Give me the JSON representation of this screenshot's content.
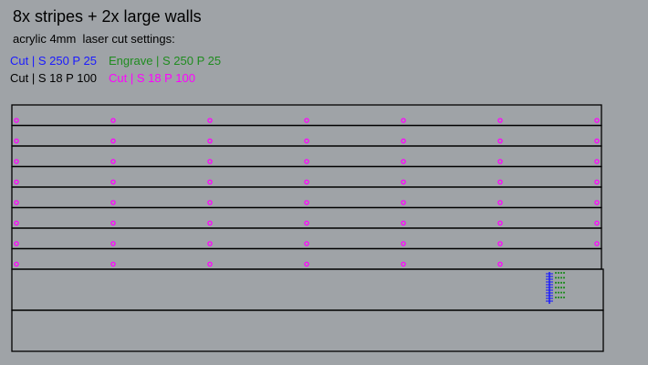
{
  "title": "8x stripes + 2x large walls",
  "subtitle": "acrylic 4mm  laser cut settings:",
  "settings": {
    "cut_blue": {
      "label": "Cut | S 250 P 25",
      "color": "#1a1aff"
    },
    "engrave_green": {
      "label": "Engrave | S 250 P 25",
      "color": "#1f8c1f"
    },
    "cut_black": {
      "label": "Cut | S 18 P 100",
      "color": "#000000"
    },
    "cut_magenta": {
      "label": "Cut | S 18 P 100",
      "color": "#ff00ff"
    }
  },
  "parts": {
    "stripes": 8,
    "large_walls": 2,
    "holes_per_stripe": 7
  },
  "colors": {
    "background": "#9fa3a7",
    "outline": "#000000"
  }
}
